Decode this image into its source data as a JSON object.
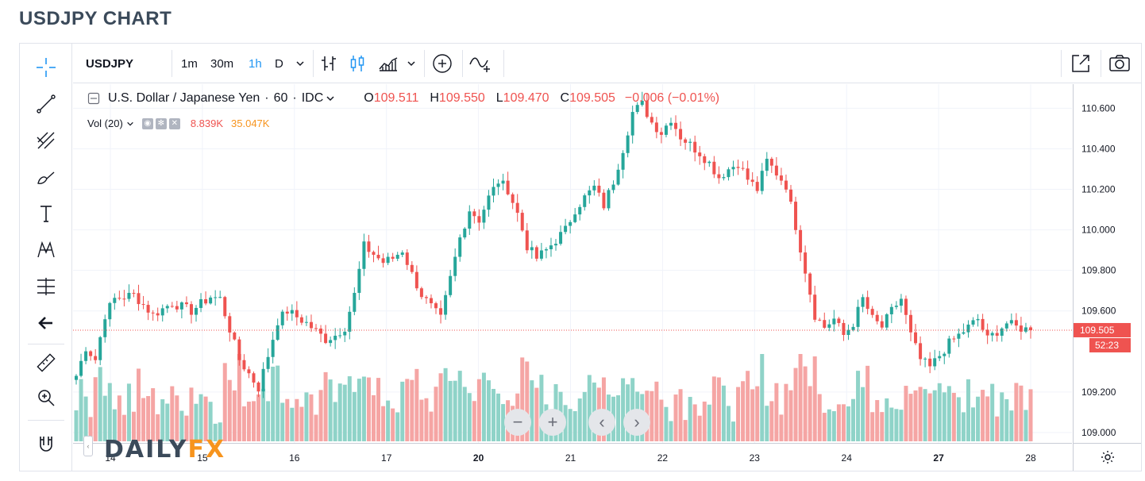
{
  "page": {
    "title": "USDJPY CHART"
  },
  "toolbar": {
    "symbol": "USDJPY",
    "intervals": [
      "1m",
      "30m",
      "1h",
      "D"
    ],
    "active_interval": "1h"
  },
  "legend": {
    "name": "U.S. Dollar / Japanese Yen",
    "separator": "·",
    "interval": "60",
    "source": "IDC",
    "open_label": "O",
    "open": "109.511",
    "high_label": "H",
    "high": "109.550",
    "low_label": "L",
    "low": "109.470",
    "close_label": "C",
    "close": "109.505",
    "change": "−0.006 (−0.01%)"
  },
  "volume_legend": {
    "label": "Vol (20)",
    "value1": "8.839K",
    "value2": "35.047K"
  },
  "price_label": {
    "price": "109.505",
    "countdown": "52:23"
  },
  "logo": {
    "part1": "DAILY",
    "part2": "FX"
  },
  "colors": {
    "up": "#26a69a",
    "down": "#ef5350",
    "vol_up": "#8fd3c8",
    "vol_down": "#f5a5a4",
    "accent": "#2196f3"
  },
  "chart_data": {
    "type": "candlestick",
    "symbol": "USDJPY",
    "interval": "60",
    "price_ticks": [
      "110.600",
      "110.400",
      "110.200",
      "110.000",
      "109.800",
      "109.600",
      "109.200",
      "109.000"
    ],
    "ylim": [
      108.98,
      110.68
    ],
    "time_ticks": [
      "14",
      "15",
      "16",
      "17",
      "20",
      "21",
      "22",
      "23",
      "24",
      "27",
      "28"
    ],
    "path": [
      [
        0,
        109.28
      ],
      [
        2,
        109.42
      ],
      [
        4,
        109.36
      ],
      [
        6,
        109.58
      ],
      [
        8,
        109.66
      ],
      [
        12,
        109.68
      ],
      [
        16,
        109.58
      ],
      [
        20,
        109.64
      ],
      [
        24,
        109.6
      ],
      [
        28,
        109.67
      ],
      [
        30,
        109.66
      ],
      [
        34,
        109.36
      ],
      [
        38,
        109.22
      ],
      [
        40,
        109.38
      ],
      [
        42,
        109.55
      ],
      [
        44,
        109.6
      ],
      [
        48,
        109.54
      ],
      [
        50,
        109.5
      ],
      [
        52,
        109.46
      ],
      [
        54,
        109.48
      ],
      [
        56,
        109.52
      ],
      [
        58,
        109.68
      ],
      [
        60,
        109.92
      ],
      [
        62,
        109.88
      ],
      [
        64,
        109.84
      ],
      [
        66,
        109.86
      ],
      [
        68,
        109.9
      ],
      [
        70,
        109.78
      ],
      [
        72,
        109.68
      ],
      [
        74,
        109.62
      ],
      [
        76,
        109.56
      ],
      [
        78,
        109.76
      ],
      [
        80,
        109.96
      ],
      [
        82,
        110.1
      ],
      [
        84,
        110.05
      ],
      [
        86,
        110.16
      ],
      [
        88,
        110.24
      ],
      [
        90,
        110.2
      ],
      [
        92,
        110.08
      ],
      [
        94,
        109.92
      ],
      [
        96,
        109.86
      ],
      [
        98,
        109.9
      ],
      [
        100,
        109.95
      ],
      [
        102,
        110.0
      ],
      [
        104,
        110.1
      ],
      [
        106,
        110.16
      ],
      [
        108,
        110.21
      ],
      [
        110,
        110.12
      ],
      [
        112,
        110.24
      ],
      [
        114,
        110.4
      ],
      [
        116,
        110.58
      ],
      [
        118,
        110.62
      ],
      [
        120,
        110.53
      ],
      [
        122,
        110.48
      ],
      [
        124,
        110.55
      ],
      [
        126,
        110.46
      ],
      [
        128,
        110.42
      ],
      [
        130,
        110.38
      ],
      [
        132,
        110.33
      ],
      [
        134,
        110.26
      ],
      [
        136,
        110.3
      ],
      [
        138,
        110.33
      ],
      [
        140,
        110.25
      ],
      [
        142,
        110.2
      ],
      [
        144,
        110.34
      ],
      [
        146,
        110.28
      ],
      [
        148,
        110.22
      ],
      [
        150,
        110.02
      ],
      [
        152,
        109.8
      ],
      [
        154,
        109.58
      ],
      [
        156,
        109.52
      ],
      [
        158,
        109.56
      ],
      [
        160,
        109.48
      ],
      [
        162,
        109.54
      ],
      [
        164,
        109.66
      ],
      [
        166,
        109.56
      ],
      [
        168,
        109.52
      ],
      [
        170,
        109.6
      ],
      [
        172,
        109.66
      ],
      [
        174,
        109.48
      ],
      [
        176,
        109.36
      ],
      [
        178,
        109.32
      ],
      [
        180,
        109.38
      ],
      [
        182,
        109.44
      ],
      [
        184,
        109.48
      ],
      [
        186,
        109.52
      ],
      [
        188,
        109.56
      ],
      [
        190,
        109.46
      ],
      [
        192,
        109.5
      ],
      [
        194,
        109.54
      ],
      [
        196,
        109.52
      ],
      [
        198,
        109.51
      ],
      [
        199,
        109.505
      ]
    ],
    "volume": {
      "last_value": "8.839K",
      "average": "35.047K"
    }
  }
}
